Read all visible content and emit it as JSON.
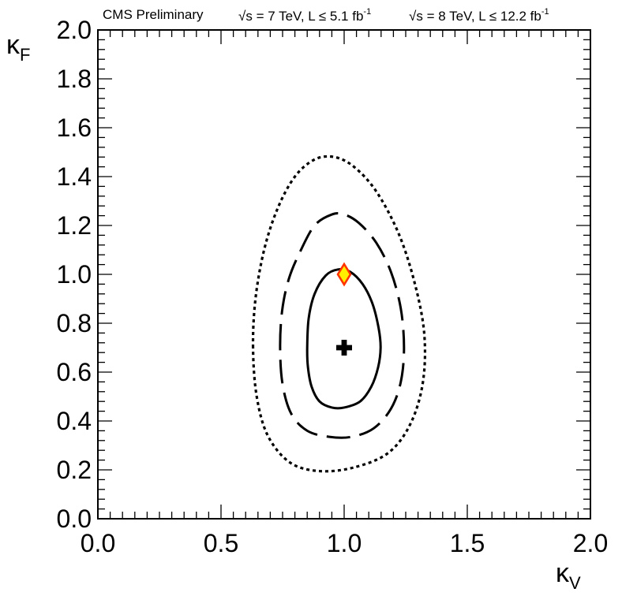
{
  "header": {
    "experiment": "CMS Preliminary",
    "sqrt_symbol": "√",
    "run1_label": "s = 7 TeV, L ≤ 5.1 fb",
    "run1_exp": "-1",
    "run2_label": "s = 8 TeV, L ≤ 12.2 fb",
    "run2_exp": "-1"
  },
  "chart_data": {
    "type": "scatter",
    "title": "",
    "xlabel": "κ",
    "xlabel_sub": "V",
    "ylabel": "κ",
    "ylabel_sub": "F",
    "xlim": [
      0.0,
      2.0
    ],
    "ylim": [
      0.0,
      2.0
    ],
    "x_ticks": [
      "0.0",
      "0.5",
      "1.0",
      "1.5",
      "2.0"
    ],
    "y_ticks": [
      "0.0",
      "0.2",
      "0.4",
      "0.6",
      "0.8",
      "1.0",
      "1.2",
      "1.4",
      "1.6",
      "1.8",
      "2.0"
    ],
    "grid": false,
    "legend": "none",
    "best_fit": {
      "x": 1.0,
      "y": 0.7
    },
    "sm_expectation": {
      "x": 1.0,
      "y": 1.0
    },
    "contours": [
      {
        "style": "solid",
        "points": [
          [
            0.85,
            0.7
          ],
          [
            0.856,
            0.82
          ],
          [
            0.88,
            0.92
          ],
          [
            0.925,
            0.995
          ],
          [
            0.975,
            1.02
          ],
          [
            1.025,
            1.01
          ],
          [
            1.075,
            0.96
          ],
          [
            1.115,
            0.88
          ],
          [
            1.14,
            0.78
          ],
          [
            1.148,
            0.7
          ],
          [
            1.138,
            0.62
          ],
          [
            1.11,
            0.54
          ],
          [
            1.065,
            0.48
          ],
          [
            1.0,
            0.455
          ],
          [
            0.95,
            0.455
          ],
          [
            0.9,
            0.48
          ],
          [
            0.868,
            0.54
          ],
          [
            0.853,
            0.62
          ]
        ]
      },
      {
        "style": "dashed",
        "points": [
          [
            0.74,
            0.7
          ],
          [
            0.748,
            0.85
          ],
          [
            0.775,
            0.98
          ],
          [
            0.82,
            1.09
          ],
          [
            0.88,
            1.2
          ],
          [
            0.95,
            1.245
          ],
          [
            1.0,
            1.245
          ],
          [
            1.06,
            1.21
          ],
          [
            1.13,
            1.13
          ],
          [
            1.19,
            1.01
          ],
          [
            1.23,
            0.86
          ],
          [
            1.243,
            0.7
          ],
          [
            1.23,
            0.56
          ],
          [
            1.19,
            0.45
          ],
          [
            1.12,
            0.37
          ],
          [
            1.03,
            0.335
          ],
          [
            0.94,
            0.335
          ],
          [
            0.85,
            0.36
          ],
          [
            0.785,
            0.43
          ],
          [
            0.75,
            0.55
          ]
        ]
      },
      {
        "style": "dotted",
        "points": [
          [
            0.63,
            0.7
          ],
          [
            0.64,
            0.9
          ],
          [
            0.675,
            1.1
          ],
          [
            0.73,
            1.27
          ],
          [
            0.8,
            1.4
          ],
          [
            0.88,
            1.47
          ],
          [
            0.96,
            1.48
          ],
          [
            1.04,
            1.44
          ],
          [
            1.13,
            1.34
          ],
          [
            1.22,
            1.17
          ],
          [
            1.285,
            0.97
          ],
          [
            1.325,
            0.76
          ],
          [
            1.32,
            0.56
          ],
          [
            1.27,
            0.39
          ],
          [
            1.18,
            0.27
          ],
          [
            1.04,
            0.21
          ],
          [
            0.9,
            0.195
          ],
          [
            0.78,
            0.23
          ],
          [
            0.69,
            0.34
          ],
          [
            0.645,
            0.5
          ]
        ]
      }
    ]
  }
}
